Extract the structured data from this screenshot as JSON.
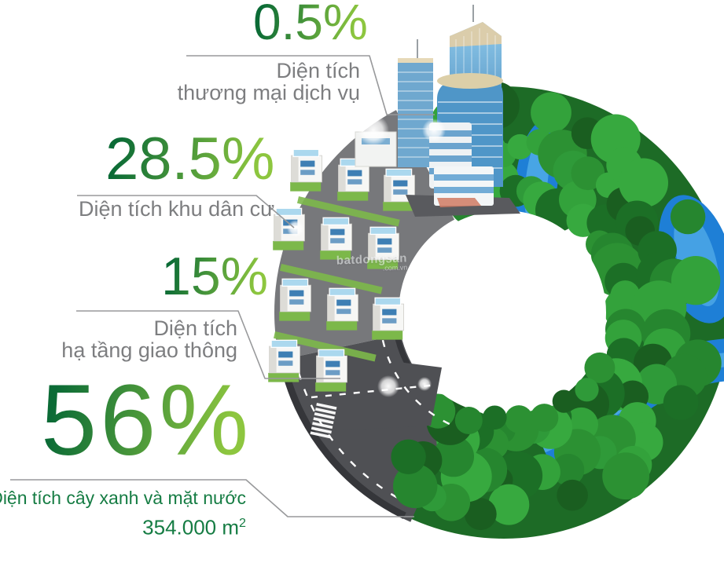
{
  "chart_data": {
    "type": "pie",
    "style": "isometric-donut-infographic",
    "categories": [
      "Diện tích thương mại dịch vụ",
      "Diện tích khu dân cư",
      "Diện tích hạ tầng giao thông",
      "Diện tích cây xanh và mặt nước"
    ],
    "values": [
      0.5,
      28.5,
      15,
      56
    ],
    "unit": "%",
    "annotations": [
      "Diện tích cây xanh và mặt nước: 354.000 m²"
    ],
    "legend_position": "left"
  },
  "callouts": {
    "commercial": {
      "value": "0.5%",
      "label_line1": "Diện tích",
      "label_line2": "thương mại dịch vụ"
    },
    "residential": {
      "value": "28.5%",
      "label_line1": "Diện tích khu dân cư"
    },
    "infrastructure": {
      "value": "15%",
      "label_line1": "Diện tích",
      "label_line2": "hạ tầng giao thông"
    },
    "green": {
      "value": "56%",
      "label_line1": "Diện tích cây xanh và mặt nước",
      "area_value": "354.000 m",
      "area_sup": "2"
    }
  },
  "watermark": {
    "name": "batdongsan",
    "domain": ".com.vn"
  },
  "colors": {
    "pct_dark": "#0b6b36",
    "pct_light": "#8dc63f",
    "label_gray": "#7d7e80",
    "label_green": "#157c43",
    "leader": "#98999b",
    "road": "#4f5054",
    "road_edge": "#35363a",
    "green_base": "#1d6b26",
    "villa_ground": "#77787b",
    "lawn": "#7cb84a",
    "water": "#1e7fd6",
    "water_light": "#6cc4f2",
    "tree_greens": [
      "#2f9a39",
      "#26862f",
      "#1c6f26",
      "#37a93f",
      "#1a5e20",
      "#2c9133",
      "#33a23b"
    ]
  }
}
